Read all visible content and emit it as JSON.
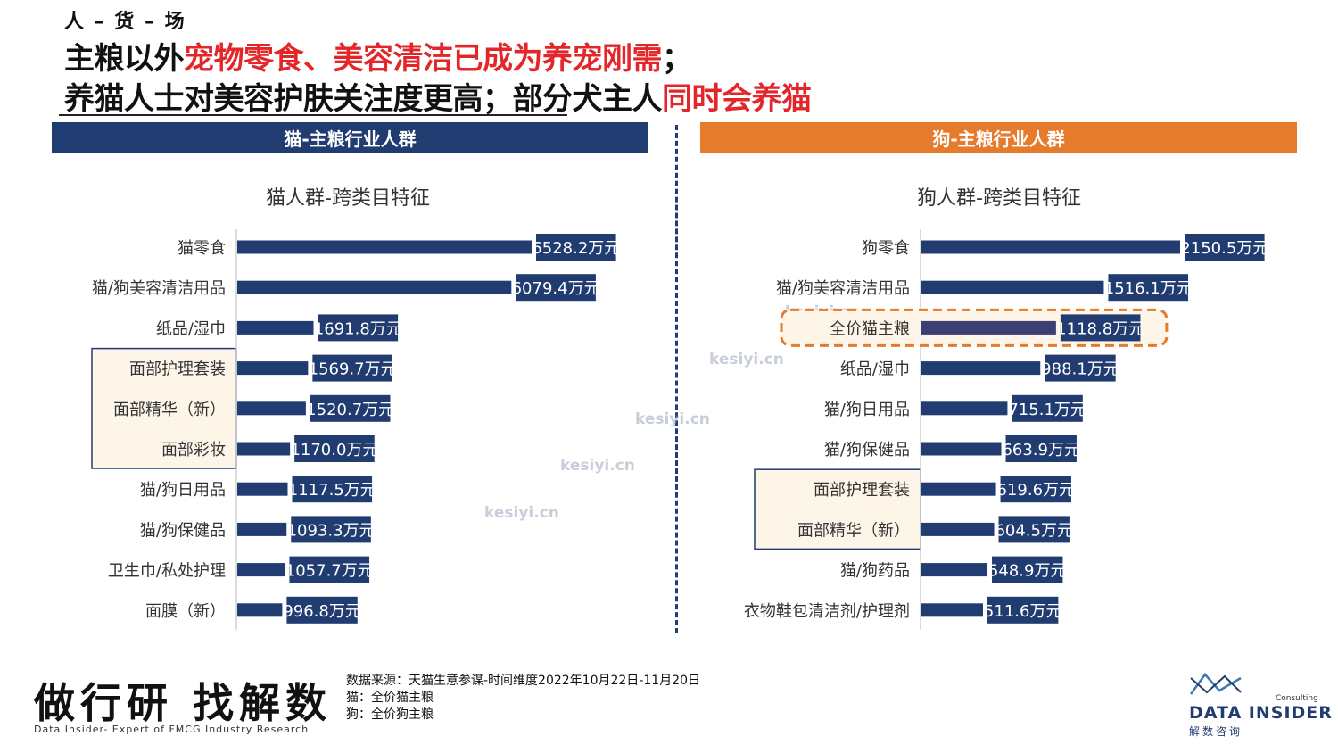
{
  "breadcrumb": "人 – 货 – 场",
  "title": {
    "line1_a": "主粮以外",
    "line1_b": "宠物零食、美容清洁已成为养宠刚需",
    "line1_c": "；",
    "line2_a": "养猫人士对美容护肤关注度更高；部分犬主人",
    "line2_b": "同时会养猫"
  },
  "colors": {
    "navy": "#213c70",
    "orange": "#e67a2d",
    "highlight_red": "#e3262a",
    "box_fill": "#fdf6e8"
  },
  "headers": {
    "cat": "猫-主粮行业人群",
    "dog": "狗-主粮行业人群"
  },
  "chart_data": [
    {
      "type": "bar",
      "orientation": "horizontal",
      "title": "猫人群-跨类目特征",
      "categories": [
        "猫零食",
        "猫/狗美容清洁用品",
        "纸品/湿巾",
        "面部护理套装",
        "面部精华（新）",
        "面部彩妆",
        "猫/狗日用品",
        "猫/狗保健品",
        "卫生巾/私处护理",
        "面膜（新）"
      ],
      "values": [
        6528.2,
        6079.4,
        1691.8,
        1569.7,
        1520.7,
        1170.0,
        1117.5,
        1093.3,
        1057.7,
        996.8
      ],
      "unit": "万元",
      "labels": [
        "6528.2万元",
        "6079.4万元",
        "1691.8万元",
        "1569.7万元",
        "1520.7万元",
        "1170.0万元",
        "1117.5万元",
        "1093.3万元",
        "1057.7万元",
        "996.8万元"
      ],
      "boxed_categories": [
        "面部护理套装",
        "面部精华（新）",
        "面部彩妆"
      ]
    },
    {
      "type": "bar",
      "orientation": "horizontal",
      "title": "狗人群-跨类目特征",
      "categories": [
        "狗零食",
        "猫/狗美容清洁用品",
        "全价猫主粮",
        "纸品/湿巾",
        "猫/狗日用品",
        "猫/狗保健品",
        "面部护理套装",
        "面部精华（新）",
        "猫/狗药品",
        "衣物鞋包清洁剂/护理剂"
      ],
      "values": [
        2150.5,
        1516.1,
        1118.8,
        988.1,
        715.1,
        663.9,
        619.6,
        604.5,
        548.9,
        511.6
      ],
      "unit": "万元",
      "labels": [
        "2150.5万元",
        "1516.1万元",
        "1118.8万元",
        "988.1万元",
        "715.1万元",
        "663.9万元",
        "619.6万元",
        "604.5万元",
        "548.9万元",
        "511.6万元"
      ],
      "boxed_categories": [
        "面部护理套装",
        "面部精华（新）"
      ],
      "highlighted_category": "全价猫主粮"
    }
  ],
  "footer": {
    "slogan": "做行研 找解数",
    "slogan_sub": "Data Insider- Expert of FMCG Industry Research",
    "source_lines": [
      "数据来源：天猫生意参谋-时间维度2022年10月22日-11月20日",
      "猫：全价猫主粮",
      "狗：全价狗主粮"
    ],
    "logo_consulting": "Consulting",
    "logo_main": "DATA INSIDER",
    "logo_sub": "解数咨询"
  },
  "watermark": "kesiyi.cn"
}
